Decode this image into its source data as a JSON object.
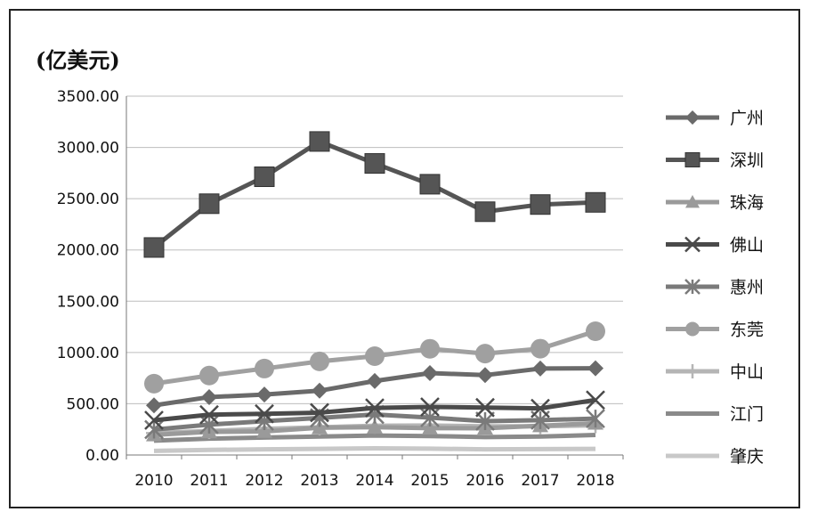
{
  "chart_data": {
    "type": "line",
    "unit_label": "(亿美元)",
    "x": [
      "2010",
      "2011",
      "2012",
      "2013",
      "2014",
      "2015",
      "2016",
      "2017",
      "2018"
    ],
    "ylim": [
      0,
      3500
    ],
    "yticks": [
      "0.00",
      "500.00",
      "1000.00",
      "1500.00",
      "2000.00",
      "2500.00",
      "3000.00",
      "3500.00"
    ],
    "grid": true,
    "legend_position": "right",
    "series": [
      {
        "name": "广州",
        "marker": "diamond",
        "color": "#6a6a6a",
        "values": [
          484,
          565,
          589,
          627,
          722,
          799,
          779,
          843,
          846
        ]
      },
      {
        "name": "深圳",
        "marker": "square",
        "color": "#555555",
        "values": [
          2024,
          2451,
          2714,
          3058,
          2844,
          2641,
          2373,
          2443,
          2464
        ]
      },
      {
        "name": "珠海",
        "marker": "triangle",
        "color": "#9a9a9a",
        "values": [
          196,
          226,
          230,
          266,
          271,
          262,
          261,
          285,
          310
        ]
      },
      {
        "name": "佛山",
        "marker": "x",
        "color": "#4a4a4a",
        "values": [
          339,
          393,
          402,
          413,
          459,
          469,
          463,
          455,
          536
        ]
      },
      {
        "name": "惠州",
        "marker": "star",
        "color": "#7a7a7a",
        "values": [
          248,
          296,
          330,
          362,
          395,
          365,
          330,
          340,
          355
        ]
      },
      {
        "name": "东莞",
        "marker": "circle",
        "color": "#a0a0a0",
        "values": [
          696,
          775,
          843,
          913,
          964,
          1036,
          989,
          1037,
          1207
        ]
      },
      {
        "name": "中山",
        "marker": "plus",
        "color": "#b5b5b5",
        "values": [
          214,
          235,
          255,
          270,
          285,
          288,
          280,
          280,
          290
        ]
      },
      {
        "name": "江门",
        "marker": "line",
        "color": "#8a8a8a",
        "values": [
          140,
          160,
          170,
          180,
          190,
          185,
          175,
          180,
          195
        ]
      },
      {
        "name": "肇庆",
        "marker": "line",
        "color": "#c8c8c8",
        "values": [
          40,
          50,
          55,
          60,
          65,
          62,
          55,
          58,
          60
        ]
      }
    ]
  }
}
